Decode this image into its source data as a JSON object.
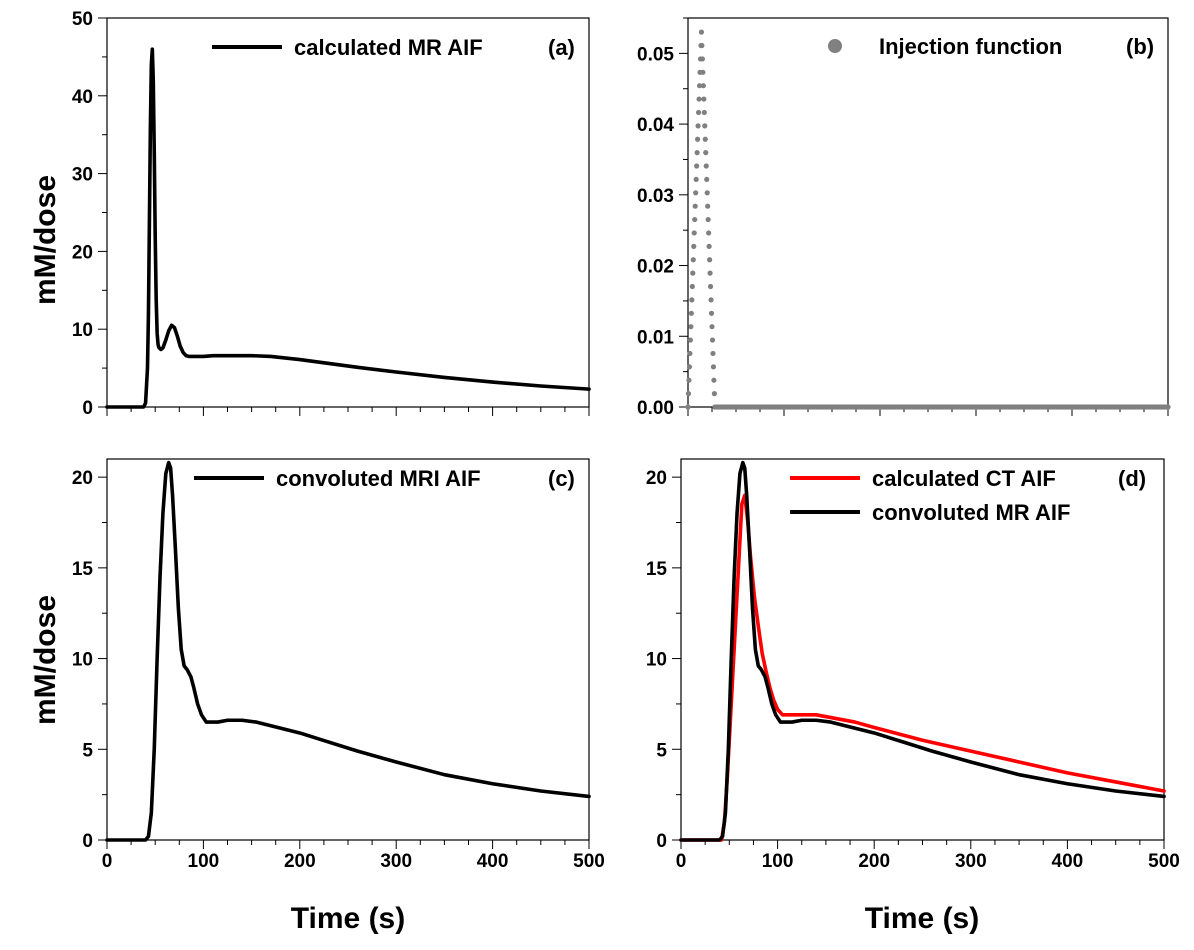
{
  "figure": {
    "ylabel_top": "mM/dose",
    "ylabel_bottom": "mM/dose",
    "xlabel_left": "Time (s)",
    "xlabel_right": "Time (s)"
  },
  "chart_data": [
    {
      "id": "a",
      "type": "line",
      "panel_label": "(a)",
      "xlabel": "",
      "ylabel": "mM/dose",
      "xlim": [
        0,
        500
      ],
      "ylim": [
        0,
        50
      ],
      "xticks": [],
      "yticks": [
        0,
        10,
        20,
        30,
        40,
        50
      ],
      "legend_position": "top-right",
      "series": [
        {
          "name": "calculated MR AIF",
          "color": "#000000",
          "style": "line",
          "x": [
            0,
            38,
            40,
            42,
            43,
            44,
            45,
            46,
            47,
            48,
            49,
            50,
            51,
            52,
            53,
            54,
            56,
            58,
            61,
            64,
            67,
            70,
            73,
            76,
            79,
            82,
            85,
            90,
            100,
            110,
            130,
            150,
            170,
            200,
            230,
            260,
            300,
            350,
            400,
            450,
            500
          ],
          "y": [
            0,
            0,
            0.5,
            5,
            12,
            24,
            36,
            44,
            46,
            42,
            33,
            22,
            14,
            9.5,
            8,
            7.6,
            7.4,
            7.6,
            8.6,
            9.8,
            10.5,
            10.2,
            9.1,
            7.8,
            7,
            6.6,
            6.5,
            6.5,
            6.5,
            6.6,
            6.6,
            6.6,
            6.5,
            6.1,
            5.6,
            5.1,
            4.5,
            3.8,
            3.2,
            2.7,
            2.3
          ]
        }
      ]
    },
    {
      "id": "b",
      "type": "scatter",
      "panel_label": "(b)",
      "xlabel": "",
      "ylabel": "",
      "xlim": [
        0,
        500
      ],
      "ylim": [
        0,
        0.055
      ],
      "xticks": [],
      "yticks": [
        0.0,
        0.01,
        0.02,
        0.03,
        0.04,
        0.05
      ],
      "ytick_labels": [
        "0.00",
        "0.01",
        "0.02",
        "0.03",
        "0.04",
        "0.05"
      ],
      "legend_position": "top-right",
      "series": [
        {
          "name": "Injection function",
          "color": "#808080",
          "style": "dots",
          "injection": {
            "start": 0,
            "end": 28,
            "peak": 0.053,
            "dt": 0.5,
            "rest_dx": 2
          }
        }
      ]
    },
    {
      "id": "c",
      "type": "line",
      "panel_label": "(c)",
      "xlabel": "Time (s)",
      "ylabel": "mM/dose",
      "xlim": [
        0,
        500
      ],
      "ylim": [
        0,
        21
      ],
      "xticks": [
        0,
        100,
        200,
        300,
        400,
        500
      ],
      "yticks": [
        0,
        5,
        10,
        15,
        20
      ],
      "legend_position": "top-right",
      "series": [
        {
          "name": "convoluted MRI AIF",
          "color": "#000000",
          "style": "line",
          "x": [
            0,
            40,
            43,
            46,
            49,
            52,
            55,
            58,
            61,
            64,
            66,
            68,
            71,
            74,
            77,
            80,
            83,
            87,
            90,
            94,
            98,
            103,
            108,
            115,
            125,
            140,
            155,
            170,
            200,
            230,
            260,
            300,
            350,
            400,
            450,
            500
          ],
          "y": [
            0,
            0,
            0.2,
            1.5,
            5,
            10,
            14.5,
            18,
            20.2,
            20.8,
            20.5,
            19,
            16,
            12.8,
            10.5,
            9.6,
            9.4,
            9,
            8.4,
            7.5,
            6.9,
            6.5,
            6.5,
            6.5,
            6.6,
            6.6,
            6.5,
            6.3,
            5.9,
            5.4,
            4.9,
            4.3,
            3.6,
            3.1,
            2.7,
            2.4
          ]
        }
      ]
    },
    {
      "id": "d",
      "type": "line",
      "panel_label": "(d)",
      "xlabel": "Time (s)",
      "ylabel": "",
      "xlim": [
        0,
        500
      ],
      "ylim": [
        0,
        21
      ],
      "xticks": [
        0,
        100,
        200,
        300,
        400,
        500
      ],
      "yticks": [
        0,
        5,
        10,
        15,
        20
      ],
      "legend_position": "top-right",
      "series": [
        {
          "name": "calculated CT AIF",
          "color": "#ff0000",
          "style": "line",
          "x": [
            0,
            42,
            45,
            48,
            52,
            56,
            60,
            63,
            66,
            69,
            72,
            76,
            80,
            84,
            88,
            92,
            96,
            100,
            105,
            110,
            120,
            140,
            160,
            180,
            200,
            250,
            300,
            350,
            400,
            450,
            500
          ],
          "y": [
            0,
            0,
            1,
            3.5,
            7.5,
            11.5,
            15.5,
            18.5,
            19,
            17.6,
            15.6,
            13.4,
            11.8,
            10.3,
            9.3,
            8.4,
            7.7,
            7.2,
            6.9,
            6.9,
            6.9,
            6.9,
            6.7,
            6.5,
            6.2,
            5.5,
            4.9,
            4.3,
            3.7,
            3.2,
            2.7
          ]
        },
        {
          "name": "convoluted MR AIF",
          "color": "#000000",
          "style": "line",
          "x": [
            0,
            40,
            43,
            46,
            49,
            52,
            55,
            58,
            61,
            64,
            66,
            68,
            71,
            74,
            77,
            80,
            83,
            87,
            90,
            94,
            98,
            103,
            108,
            115,
            125,
            140,
            155,
            170,
            200,
            230,
            260,
            300,
            350,
            400,
            450,
            500
          ],
          "y": [
            0,
            0,
            0.2,
            1.5,
            5,
            10,
            14.5,
            18,
            20.2,
            20.8,
            20.5,
            19,
            16,
            12.8,
            10.5,
            9.6,
            9.4,
            9,
            8.4,
            7.5,
            6.9,
            6.5,
            6.5,
            6.5,
            6.6,
            6.6,
            6.5,
            6.3,
            5.9,
            5.4,
            4.9,
            4.3,
            3.6,
            3.1,
            2.7,
            2.4
          ]
        }
      ]
    }
  ]
}
